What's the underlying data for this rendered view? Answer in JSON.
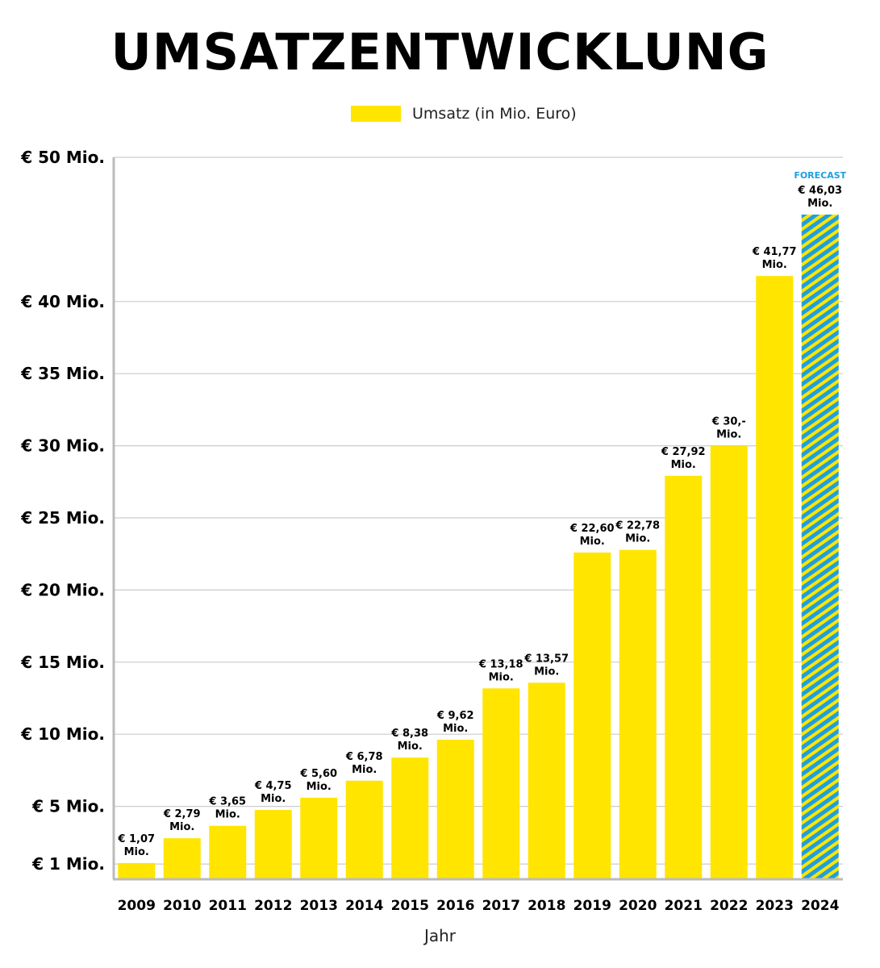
{
  "chart_data": {
    "type": "bar",
    "title": "UMSATZENTWICKLUNG",
    "xlabel": "Jahr",
    "ylabel": "",
    "legend": {
      "label": "Umsatz (in Mio. Euro)",
      "position": "top-center"
    },
    "grid": true,
    "categories": [
      "2009",
      "2010",
      "2011",
      "2012",
      "2013",
      "2014",
      "2015",
      "2016",
      "2017",
      "2018",
      "2019",
      "2020",
      "2021",
      "2022",
      "2023",
      "2024"
    ],
    "series": [
      {
        "name": "Umsatz (in Mio. Euro)",
        "values": [
          1.07,
          2.79,
          3.65,
          4.75,
          5.6,
          6.78,
          8.38,
          9.62,
          13.18,
          13.57,
          22.6,
          22.78,
          27.92,
          30.0,
          41.77,
          46.03
        ]
      }
    ],
    "data_labels": [
      [
        "€ 1,07",
        "Mio."
      ],
      [
        "€ 2,79",
        "Mio."
      ],
      [
        "€ 3,65",
        "Mio."
      ],
      [
        "€ 4,75",
        "Mio."
      ],
      [
        "€ 5,60",
        "Mio."
      ],
      [
        "€ 6,78",
        "Mio."
      ],
      [
        "€ 8,38",
        "Mio."
      ],
      [
        "€ 9,62",
        "Mio."
      ],
      [
        "€ 13,18",
        "Mio."
      ],
      [
        "€ 13,57",
        "Mio."
      ],
      [
        "€ 22,60",
        "Mio."
      ],
      [
        "€ 22,78",
        "Mio."
      ],
      [
        "€ 27,92",
        "Mio."
      ],
      [
        "€ 30,-",
        "Mio."
      ],
      [
        "€ 41,77",
        "Mio."
      ],
      [
        "€ 46,03",
        "Mio."
      ]
    ],
    "forecast": {
      "category": "2024",
      "label": "FORECAST"
    },
    "y_ticks": [
      {
        "value": 1,
        "label": "€ 1 Mio."
      },
      {
        "value": 5,
        "label": "€ 5 Mio."
      },
      {
        "value": 10,
        "label": "€ 10 Mio."
      },
      {
        "value": 15,
        "label": "€ 15 Mio."
      },
      {
        "value": 20,
        "label": "€ 20 Mio."
      },
      {
        "value": 25,
        "label": "€ 25 Mio."
      },
      {
        "value": 30,
        "label": "€ 30 Mio."
      },
      {
        "value": 35,
        "label": "€ 35 Mio."
      },
      {
        "value": 40,
        "label": "€ 40 Mio."
      },
      {
        "value": 50,
        "label": "€ 50 Mio."
      }
    ],
    "colors": {
      "bar": "#FFE500",
      "forecast_stripe": "#1E9FE0",
      "grid": "#CCCCCC",
      "forecast_label": "#1E9FE0"
    }
  }
}
